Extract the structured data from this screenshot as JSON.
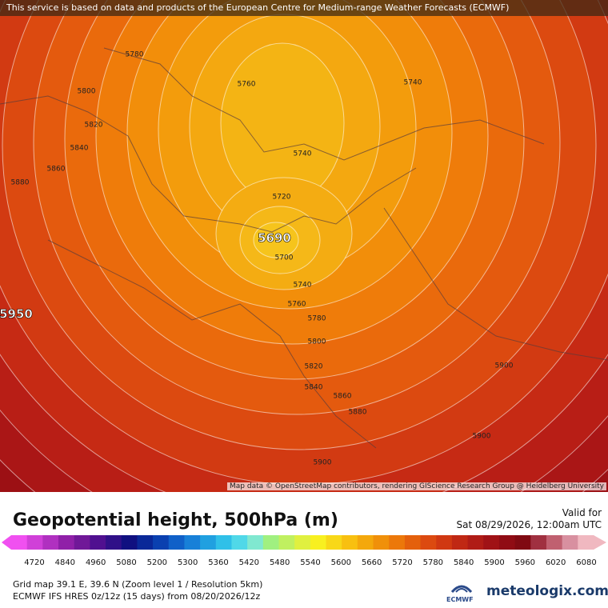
{
  "header": {
    "notice": "This service is based on data and products of the European Centre for Medium-range Weather Forecasts (ECMWF)"
  },
  "map": {
    "contour_labels": [
      "5780",
      "5760",
      "5740",
      "5800",
      "5820",
      "5840",
      "5860",
      "5880",
      "5740",
      "5720",
      "5690",
      "5700",
      "5740",
      "5760",
      "5780",
      "5800",
      "5820",
      "5840",
      "5860",
      "5880",
      "5900",
      "5900",
      "5900",
      "5950"
    ],
    "attribution": "Map data © OpenStreetMap contributors, rendering GIScience Research Group @ Heidelberg University"
  },
  "footer": {
    "title": "Geopotential height, 500hPa (m)",
    "valid_label": "Valid for",
    "valid_time": "Sat 08/29/2026, 12:00am UTC",
    "scale_labels": [
      "4720",
      "4840",
      "4960",
      "5080",
      "5200",
      "5300",
      "5360",
      "5420",
      "5480",
      "5540",
      "5600",
      "5660",
      "5720",
      "5780",
      "5840",
      "5900",
      "5960",
      "6020",
      "6080"
    ],
    "grid_info": "Grid map 39.1 E, 39.6 N (Zoom level 1 / Resolution 5km)",
    "model_info": "ECMWF IFS HRES 0z/12z (15 days) from  08/20/2026/12z",
    "ecmwf_logo": "ECMWF",
    "brand": "meteologix.com"
  }
}
